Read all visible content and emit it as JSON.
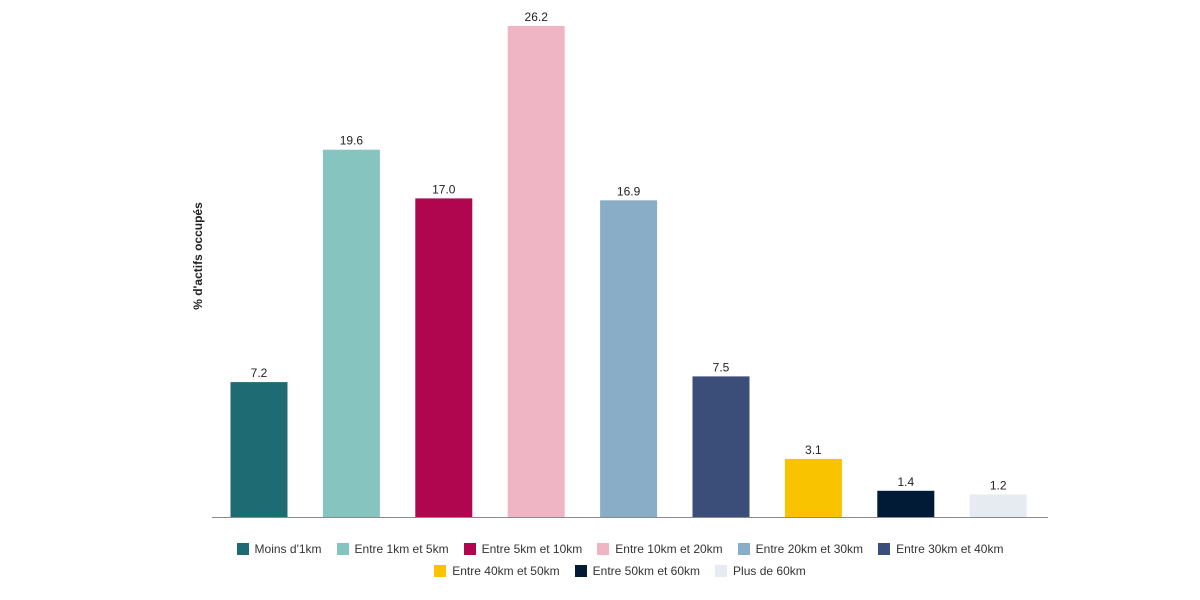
{
  "chart_data": {
    "type": "bar",
    "title": "",
    "xlabel": "",
    "ylabel": "% d'actifs occupés",
    "ylim": [
      0,
      27
    ],
    "grid": false,
    "legend_position": "bottom",
    "categories": [
      "Moins d'1km",
      "Entre 1km et 5km",
      "Entre 5km et 10km",
      "Entre 10km et 20km",
      "Entre 20km et 30km",
      "Entre 30km et 40km",
      "Entre 40km et 50km",
      "Entre 50km et 60km",
      "Plus de 60km"
    ],
    "values": [
      7.2,
      19.6,
      17.0,
      26.2,
      16.9,
      7.5,
      3.1,
      1.4,
      1.2
    ],
    "value_labels": [
      "7.2",
      "19.6",
      "17.0",
      "26.2",
      "16.9",
      "7.5",
      "3.1",
      "1.4",
      "1.2"
    ],
    "colors": [
      "#1f6b74",
      "#86c5bf",
      "#b0054f",
      "#efb5c5",
      "#8aadc7",
      "#3b4e7a",
      "#f9c300",
      "#011a35",
      "#e6ebf2"
    ]
  }
}
